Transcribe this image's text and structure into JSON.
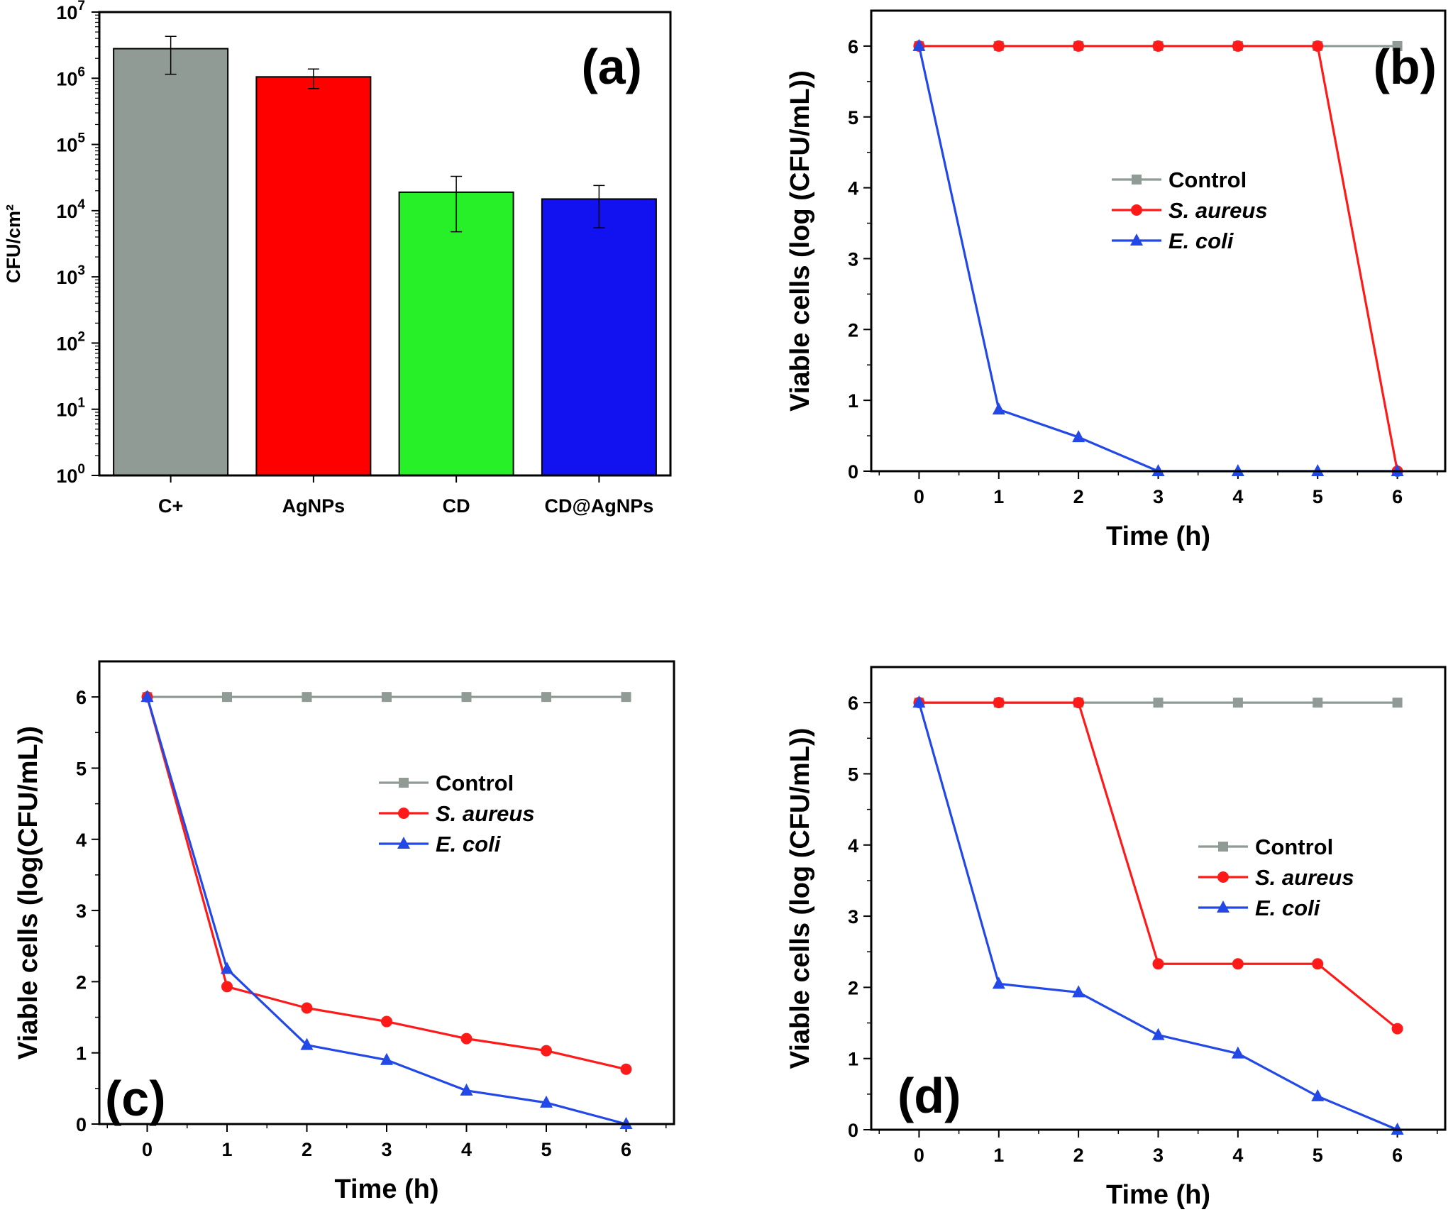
{
  "colors": {
    "control": "#8f9b94",
    "s_aureus": "#ff1a1a",
    "e_coli": "#2348e8",
    "bar_cplus": "#8f9b94",
    "bar_agnps": "#ff0000",
    "bar_cd": "#28f028",
    "bar_cdagnps": "#1212f0"
  },
  "chart_data": [
    {
      "id": "a",
      "type": "bar",
      "panel_label": "(a)",
      "ylabel": "CFU/cm²",
      "xlabel": "",
      "yscale": "log",
      "ylim": [
        1,
        10000000
      ],
      "ytick_labels": [
        {
          "base": "10",
          "exp": "0"
        },
        {
          "base": "10",
          "exp": "1"
        },
        {
          "base": "10",
          "exp": "2"
        },
        {
          "base": "10",
          "exp": "3"
        },
        {
          "base": "10",
          "exp": "4"
        },
        {
          "base": "10",
          "exp": "5"
        },
        {
          "base": "10",
          "exp": "6"
        },
        {
          "base": "10",
          "exp": "7"
        }
      ],
      "categories": [
        "C+",
        "AgNPs",
        "CD",
        "CD@AgNPs"
      ],
      "values": [
        2800000,
        1050000,
        19000,
        15000
      ],
      "error_low": [
        1150000,
        700000,
        4800,
        5500
      ],
      "error_high": [
        4300000,
        1380000,
        33000,
        24000
      ],
      "bar_colors": [
        "#8f9b94",
        "#ff0000",
        "#28f028",
        "#1212f0"
      ]
    },
    {
      "id": "b",
      "type": "line",
      "panel_label": "(b)",
      "xlabel": "Time (h)",
      "ylabel": "Viable cells (log (CFU/mL))",
      "xlim": [
        -0.6,
        6.6
      ],
      "ylim": [
        0,
        6.5
      ],
      "xticks": [
        0,
        1,
        2,
        3,
        4,
        5,
        6
      ],
      "yticks": [
        0,
        1,
        2,
        3,
        4,
        5,
        6
      ],
      "legend_position": "center-right",
      "x": [
        0,
        1,
        2,
        3,
        4,
        5,
        6
      ],
      "series": [
        {
          "name": "Control",
          "marker": "square",
          "values": [
            6,
            6,
            6,
            6,
            6,
            6,
            6
          ]
        },
        {
          "name": "S. aureus",
          "marker": "circle",
          "values": [
            6,
            6,
            6,
            6,
            6,
            6,
            0
          ]
        },
        {
          "name": "E. coli",
          "marker": "triangle",
          "values": [
            6,
            0.87,
            0.48,
            0,
            0,
            0,
            0
          ]
        }
      ]
    },
    {
      "id": "c",
      "type": "line",
      "panel_label": "(c)",
      "xlabel": "Time (h)",
      "ylabel": "Viable cells (log(CFU/mL))",
      "xlim": [
        -0.6,
        6.6
      ],
      "ylim": [
        0,
        6.5
      ],
      "xticks": [
        0,
        1,
        2,
        3,
        4,
        5,
        6
      ],
      "yticks": [
        0,
        1,
        2,
        3,
        4,
        5,
        6
      ],
      "legend_position": "center-right",
      "x": [
        0,
        1,
        2,
        3,
        4,
        5,
        6
      ],
      "series": [
        {
          "name": "Control",
          "marker": "square",
          "values": [
            6,
            6,
            6,
            6,
            6,
            6,
            6
          ]
        },
        {
          "name": "S. aureus",
          "marker": "circle",
          "values": [
            6,
            1.93,
            1.63,
            1.44,
            1.2,
            1.03,
            0.77
          ]
        },
        {
          "name": "E. coli",
          "marker": "triangle",
          "values": [
            6,
            2.18,
            1.11,
            0.9,
            0.47,
            0.3,
            0
          ]
        }
      ]
    },
    {
      "id": "d",
      "type": "line",
      "panel_label": "(d)",
      "xlabel": "Time (h)",
      "ylabel": "Viable cells (log (CFU/mL))",
      "xlim": [
        -0.6,
        6.6
      ],
      "ylim": [
        0,
        6.5
      ],
      "xticks": [
        0,
        1,
        2,
        3,
        4,
        5,
        6
      ],
      "yticks": [
        0,
        1,
        2,
        3,
        4,
        5,
        6
      ],
      "legend_position": "center-right",
      "x": [
        0,
        1,
        2,
        3,
        4,
        5,
        6
      ],
      "series": [
        {
          "name": "Control",
          "marker": "square",
          "values": [
            6,
            6,
            6,
            6,
            6,
            6,
            6
          ]
        },
        {
          "name": "S. aureus",
          "marker": "circle",
          "values": [
            6,
            6,
            6,
            2.33,
            2.33,
            2.33,
            1.42
          ]
        },
        {
          "name": "E. coli",
          "marker": "triangle",
          "values": [
            6,
            2.05,
            1.93,
            1.33,
            1.07,
            0.47,
            0
          ]
        }
      ]
    }
  ]
}
